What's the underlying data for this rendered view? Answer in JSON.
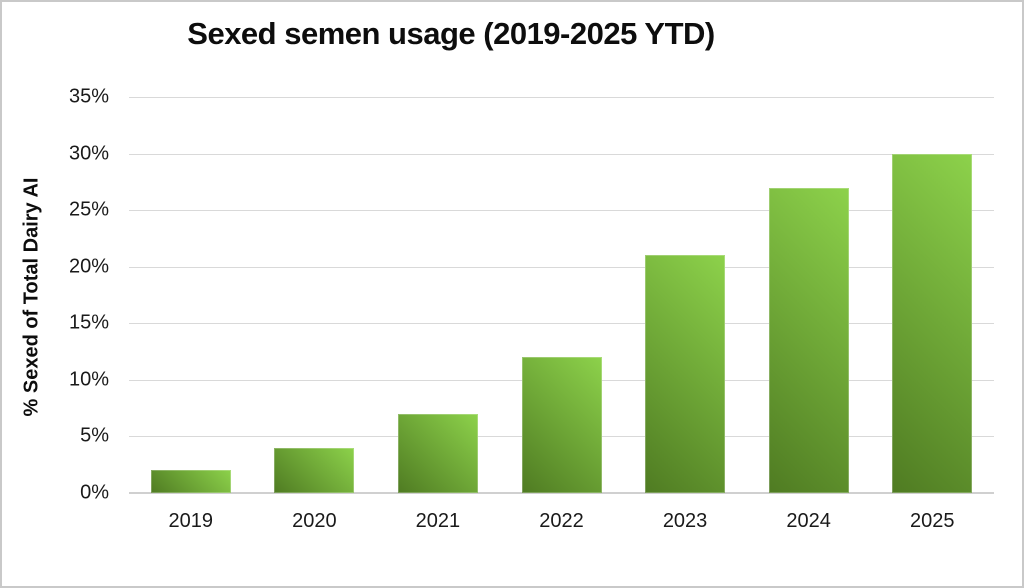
{
  "chart_data": {
    "type": "bar",
    "title": "Sexed semen usage (2019-2025 YTD)",
    "ylabel": "% Sexed of Total Dairy AI",
    "xlabel": "",
    "categories": [
      "2019",
      "2020",
      "2021",
      "2022",
      "2023",
      "2024",
      "2025"
    ],
    "values": [
      2,
      4,
      7,
      12,
      21,
      27,
      30
    ],
    "series_name": "% Sexed of Total Dairy AI",
    "ylim": [
      0,
      35
    ],
    "ytick_step": 5,
    "ytick_labels": [
      "0%",
      "5%",
      "10%",
      "15%",
      "20%",
      "25%",
      "30%",
      "35%"
    ],
    "grid": true,
    "legend": "none",
    "colors": {
      "bar_gradient_dark": "#4f7b22",
      "bar_gradient_light": "#8dd24b",
      "gridline": "#d9d9d9",
      "axis_baseline": "#d0d0d0",
      "text": "#1a1a1a",
      "title_text": "#0d0d0d",
      "background": "#ffffff",
      "border": "#c9c9c9"
    }
  }
}
